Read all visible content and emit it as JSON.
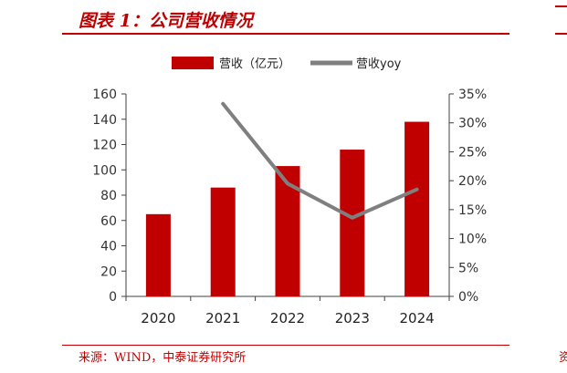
{
  "header": {
    "title": "图表 1：公司营收情况"
  },
  "footer": {
    "source": "来源：WIND，中泰证券研究所"
  },
  "colors": {
    "bar": "#c00000",
    "line": "#7f7f7f",
    "accent": "#c00000",
    "axis": "#404040"
  },
  "chart_data": {
    "type": "bar",
    "categories": [
      "2020",
      "2021",
      "2022",
      "2023",
      "2024"
    ],
    "series": [
      {
        "name": "营收（亿元）",
        "type": "bar",
        "axis": "left",
        "values": [
          65,
          86,
          103,
          116,
          138
        ]
      },
      {
        "name": "营收yoy",
        "type": "line",
        "axis": "right",
        "values": [
          null,
          33.3,
          19.5,
          13.6,
          18.5
        ]
      }
    ],
    "y_left": {
      "min": 0,
      "max": 160,
      "step": 20,
      "ticks": [
        "0",
        "20",
        "40",
        "60",
        "80",
        "100",
        "120",
        "140",
        "160"
      ]
    },
    "y_right": {
      "min": 0,
      "max": 35,
      "step": 5,
      "ticks": [
        "0%",
        "5%",
        "10%",
        "15%",
        "20%",
        "25%",
        "30%",
        "35%"
      ]
    },
    "legend_position": "top",
    "grid": false
  }
}
